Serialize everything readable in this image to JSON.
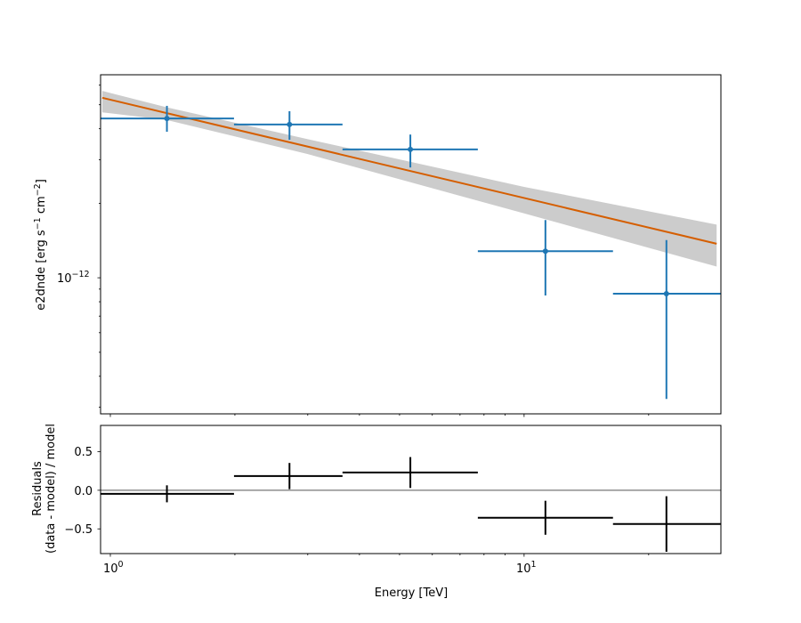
{
  "chart_data": [
    {
      "type": "scatter",
      "panel": "spectrum",
      "xlabel": "Energy [TeV]",
      "ylabel": {
        "text": "e2dnde [erg s",
        "exp1": "−1",
        "mid": " cm",
        "exp2": "−2",
        "end": "]"
      },
      "xscale": "log",
      "yscale": "log",
      "xlim": [
        0.947,
        29.9
      ],
      "ylim": [
        2.82e-13,
        6.61e-12
      ],
      "y_tick_labels": [
        {
          "value": 1e-12,
          "base": "10",
          "exp": "−12"
        }
      ],
      "grid": false,
      "colors": {
        "points": "#1f77b4",
        "model": "#d55e00",
        "band": "#cccccc"
      },
      "flux_points": [
        {
          "e": 1.37,
          "e_min": 0.947,
          "e_max": 1.99,
          "y": 4.4e-12,
          "y_lo": 3.89e-12,
          "y_hi": 4.95e-12
        },
        {
          "e": 2.71,
          "e_min": 1.99,
          "e_max": 3.64,
          "y": 4.16e-12,
          "y_lo": 3.61e-12,
          "y_hi": 4.71e-12
        },
        {
          "e": 5.31,
          "e_min": 3.64,
          "e_max": 7.73,
          "y": 3.3e-12,
          "y_lo": 2.79e-12,
          "y_hi": 3.79e-12
        },
        {
          "e": 11.26,
          "e_min": 7.73,
          "e_max": 16.4,
          "y": 1.28e-12,
          "y_lo": 8.48e-13,
          "y_hi": 1.71e-12
        },
        {
          "e": 22.08,
          "e_min": 16.4,
          "e_max": 29.9,
          "y": 8.62e-13,
          "y_lo": 3.24e-13,
          "y_hi": 1.42e-12
        }
      ],
      "model": {
        "e_range": [
          0.956,
          29.2
        ],
        "y_at_1TeV": 5.24e-12,
        "slope": -0.397
      },
      "model_band": {
        "e": [
          0.956,
          1.37,
          3.0,
          10.0,
          29.2
        ],
        "upper": [
          5.69e-12,
          4.88e-12,
          3.63e-12,
          2.33e-12,
          1.64e-12
        ],
        "lower": [
          4.66e-12,
          4.34e-12,
          3.16e-12,
          1.82e-12,
          1.11e-12
        ]
      }
    },
    {
      "type": "scatter",
      "panel": "residuals",
      "xlabel": "Energy [TeV]",
      "ylabel": [
        "Residuals",
        "(data - model) / model"
      ],
      "xscale": "log",
      "xlim": [
        0.947,
        29.9
      ],
      "ylim": [
        -0.82,
        0.84
      ],
      "x_tick_labels": [
        {
          "value": 1,
          "base": "10",
          "exp": "0"
        },
        {
          "value": 10,
          "base": "10",
          "exp": "1"
        }
      ],
      "y_tick_labels": [
        {
          "value": 0.5,
          "label": "0.5"
        },
        {
          "value": 0.0,
          "label": "0.0"
        },
        {
          "value": -0.5,
          "label": "−0.5"
        }
      ],
      "color": "#000000",
      "points": [
        {
          "e": 1.37,
          "e_min": 0.947,
          "e_max": 1.99,
          "y": -0.046,
          "err": 0.11
        },
        {
          "e": 2.71,
          "e_min": 1.99,
          "e_max": 3.64,
          "y": 0.184,
          "err": 0.17
        },
        {
          "e": 5.31,
          "e_min": 3.64,
          "e_max": 7.73,
          "y": 0.23,
          "err": 0.2
        },
        {
          "e": 11.26,
          "e_min": 7.73,
          "e_max": 16.4,
          "y": -0.356,
          "err": 0.22
        },
        {
          "e": 22.08,
          "e_min": 16.4,
          "e_max": 29.9,
          "y": -0.437,
          "err": 0.36
        }
      ]
    }
  ]
}
